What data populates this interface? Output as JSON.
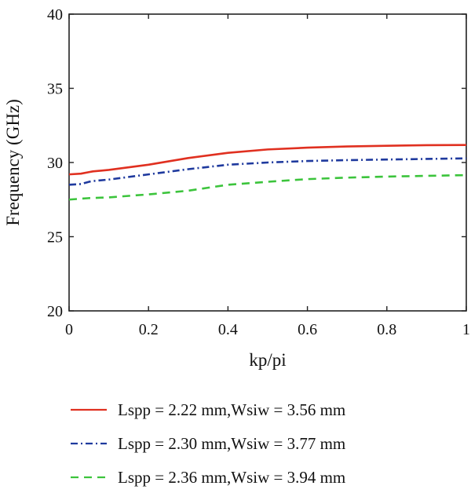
{
  "chart_data": {
    "type": "line",
    "title": "",
    "xlabel": "kp/pi",
    "ylabel": "Frequency (GHz)",
    "xlim": [
      0,
      1
    ],
    "ylim": [
      20,
      40
    ],
    "x_ticks": [
      "0",
      "0.2",
      "0.4",
      "0.6",
      "0.8",
      "1"
    ],
    "x_tick_values": [
      0,
      0.2,
      0.4,
      0.6,
      0.8,
      1
    ],
    "y_ticks": [
      "20",
      "25",
      "30",
      "35",
      "40"
    ],
    "y_tick_values": [
      20,
      25,
      30,
      35,
      40
    ],
    "grid": false,
    "legend_position": "bottom",
    "series": [
      {
        "name": "Lspp = 2.22 mm,Wsiw = 3.56 mm",
        "color": "#e03020",
        "style": "solid",
        "x": [
          0,
          0.03,
          0.05,
          0.06,
          0.1,
          0.2,
          0.3,
          0.4,
          0.5,
          0.6,
          0.7,
          0.8,
          0.9,
          1.0
        ],
        "y": [
          29.2,
          29.25,
          29.35,
          29.4,
          29.5,
          29.85,
          30.3,
          30.65,
          30.88,
          31.0,
          31.08,
          31.13,
          31.17,
          31.18
        ]
      },
      {
        "name": "Lspp = 2.30 mm,Wsiw = 3.77 mm",
        "color": "#1f3a9e",
        "style": "dashdot",
        "x": [
          0,
          0.03,
          0.05,
          0.06,
          0.1,
          0.2,
          0.3,
          0.4,
          0.5,
          0.6,
          0.7,
          0.8,
          0.9,
          1.0
        ],
        "y": [
          28.5,
          28.55,
          28.7,
          28.75,
          28.85,
          29.2,
          29.55,
          29.85,
          30.0,
          30.1,
          30.16,
          30.2,
          30.24,
          30.28
        ]
      },
      {
        "name": "Lspp = 2.36 mm,Wsiw = 3.94 mm",
        "color": "#3cc43c",
        "style": "dashed",
        "x": [
          0,
          0.05,
          0.1,
          0.2,
          0.3,
          0.35,
          0.4,
          0.5,
          0.6,
          0.7,
          0.8,
          0.9,
          1.0
        ],
        "y": [
          27.5,
          27.6,
          27.65,
          27.85,
          28.1,
          28.3,
          28.5,
          28.7,
          28.88,
          28.98,
          29.05,
          29.1,
          29.15
        ]
      }
    ]
  }
}
